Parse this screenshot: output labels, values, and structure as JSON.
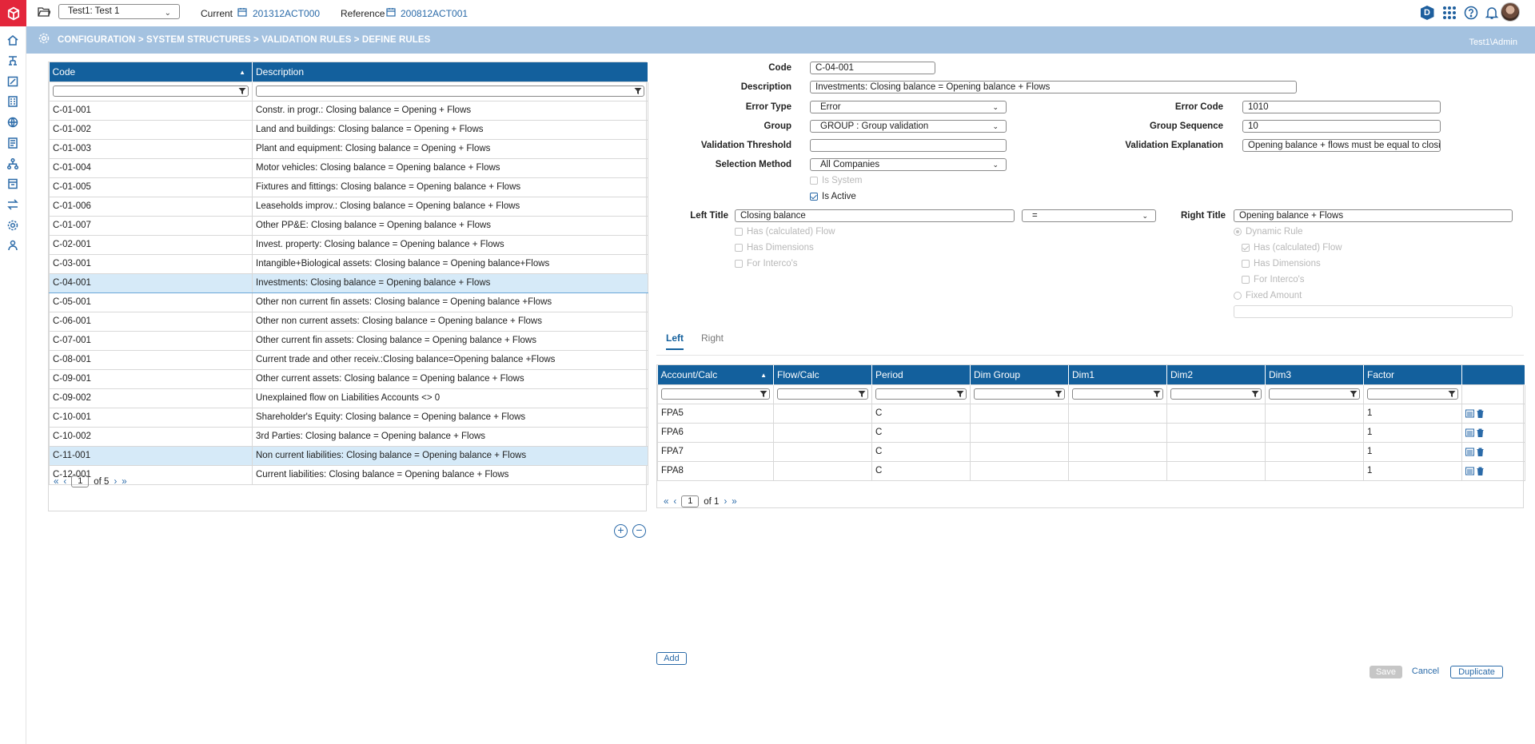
{
  "topbar": {
    "workspace": "Test1: Test 1",
    "current_label": "Current",
    "current_value": "201312ACT000",
    "reference_label": "Reference",
    "reference_value": "200812ACT001",
    "badge_letter": "D"
  },
  "breadcrumb": "CONFIGURATION > SYSTEM STRUCTURES > VALIDATION RULES > DEFINE RULES",
  "user": "Test1\\Admin",
  "rules": {
    "headers": {
      "code": "Code",
      "description": "Description"
    },
    "rows": [
      {
        "code": "C-01-001",
        "description": "Constr. in progr.: Closing balance = Opening + Flows"
      },
      {
        "code": "C-01-002",
        "description": "Land and buildings: Closing balance = Opening + Flows"
      },
      {
        "code": "C-01-003",
        "description": "Plant and equipment: Closing balance = Opening + Flows"
      },
      {
        "code": "C-01-004",
        "description": "Motor vehicles: Closing balance = Opening balance + Flows"
      },
      {
        "code": "C-01-005",
        "description": "Fixtures and fittings: Closing balance = Opening balance + Flows"
      },
      {
        "code": "C-01-006",
        "description": "Leaseholds improv.: Closing balance = Opening balance + Flows"
      },
      {
        "code": "C-01-007",
        "description": "Other PP&E: Closing balance = Opening balance + Flows"
      },
      {
        "code": "C-02-001",
        "description": "Invest. property: Closing balance = Opening balance + Flows"
      },
      {
        "code": "C-03-001",
        "description": "Intangible+Biological assets: Closing balance = Opening balance+Flows"
      },
      {
        "code": "C-04-001",
        "description": "Investments: Closing balance = Opening balance + Flows"
      },
      {
        "code": "C-05-001",
        "description": "Other non current fin assets: Closing balance = Opening balance +Flows"
      },
      {
        "code": "C-06-001",
        "description": "Other non current assets: Closing balance = Opening balance + Flows"
      },
      {
        "code": "C-07-001",
        "description": "Other current fin assets: Closing balance = Opening balance + Flows"
      },
      {
        "code": "C-08-001",
        "description": "Current trade and other receiv.:Closing balance=Opening balance +Flows"
      },
      {
        "code": "C-09-001",
        "description": "Other current assets: Closing balance = Opening balance + Flows"
      },
      {
        "code": "C-09-002",
        "description": "Unexplained flow on Liabilities Accounts <> 0"
      },
      {
        "code": "C-10-001",
        "description": "Shareholder's Equity: Closing balance = Opening balance + Flows"
      },
      {
        "code": "C-10-002",
        "description": "3rd Parties: Closing balance = Opening balance + Flows"
      },
      {
        "code": "C-11-001",
        "description": "Non current liabilities: Closing balance = Opening balance + Flows"
      },
      {
        "code": "C-12-001",
        "description": "Current liabilities: Closing balance = Opening balance + Flows"
      }
    ],
    "pager": {
      "page": "1",
      "of": "of 5"
    }
  },
  "form": {
    "labels": {
      "code": "Code",
      "description": "Description",
      "error_type": "Error Type",
      "group": "Group",
      "validation_threshold": "Validation Threshold",
      "selection_method": "Selection Method",
      "error_code": "Error Code",
      "group_sequence": "Group Sequence",
      "validation_explanation": "Validation Explanation",
      "left_title": "Left Title",
      "right_title": "Right Title"
    },
    "values": {
      "code": "C-04-001",
      "description": "Investments: Closing balance = Opening balance + Flows",
      "error_type": "Error",
      "group": "GROUP : Group validation",
      "validation_threshold": "",
      "selection_method": "All Companies",
      "error_code": "1010",
      "group_sequence": "10",
      "validation_explanation": "Opening balance + flows must be equal to closing",
      "left_title": "Closing balance",
      "operator": "=",
      "right_title": "Opening balance + Flows",
      "fixed_amount": ""
    },
    "checks": {
      "is_system": "Is System",
      "is_active": "Is Active",
      "left_has_calc_flow": "Has (calculated) Flow",
      "left_has_dimensions": "Has Dimensions",
      "left_for_intercos": "For Interco's",
      "dynamic_rule": "Dynamic Rule",
      "right_has_calc_flow": "Has (calculated) Flow",
      "right_has_dimensions": "Has Dimensions",
      "right_for_intercos": "For Interco's",
      "fixed_amount": "Fixed Amount"
    }
  },
  "tabs": [
    "Left",
    "Right"
  ],
  "lines": {
    "headers": [
      "Account/Calc",
      "Flow/Calc",
      "Period",
      "Dim Group",
      "Dim1",
      "Dim2",
      "Dim3",
      "Factor"
    ],
    "rows": [
      {
        "account": "FPA5",
        "flow": "",
        "period": "C",
        "dimgroup": "",
        "dim1": "",
        "dim2": "",
        "dim3": "",
        "factor": "1"
      },
      {
        "account": "FPA6",
        "flow": "",
        "period": "C",
        "dimgroup": "",
        "dim1": "",
        "dim2": "",
        "dim3": "",
        "factor": "1"
      },
      {
        "account": "FPA7",
        "flow": "",
        "period": "C",
        "dimgroup": "",
        "dim1": "",
        "dim2": "",
        "dim3": "",
        "factor": "1"
      },
      {
        "account": "FPA8",
        "flow": "",
        "period": "C",
        "dimgroup": "",
        "dim1": "",
        "dim2": "",
        "dim3": "",
        "factor": "1"
      }
    ],
    "pager": {
      "page": "1",
      "of": "of 1"
    }
  },
  "buttons": {
    "add": "Add",
    "save": "Save",
    "cancel": "Cancel",
    "duplicate": "Duplicate",
    "plus": "+",
    "minus": "−"
  },
  "colors": {
    "brand_red": "#e3263b",
    "header_blue": "#13609d",
    "band_blue": "#a4c2e0",
    "selected_row": "#d6eaf8"
  }
}
